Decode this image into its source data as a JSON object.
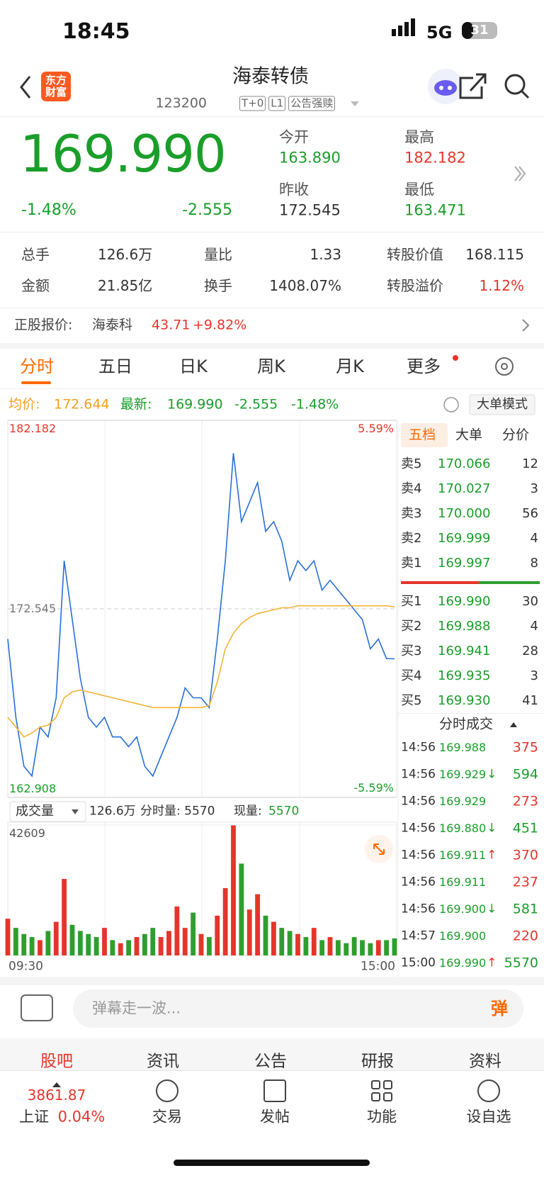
{
  "status_bar": {
    "time": "18:45",
    "network": "5G",
    "battery": "31"
  },
  "header": {
    "logo": "东方财富",
    "title": "海泰转债",
    "code": "123200",
    "tags": [
      "T+0",
      "L1",
      "公告强赎"
    ]
  },
  "quote": {
    "price": "169.990",
    "change_pct": "-1.48%",
    "change": "-2.555",
    "fields": [
      {
        "label": "今开",
        "value": "163.890",
        "color": "#1a9e2a"
      },
      {
        "label": "最高",
        "value": "182.182",
        "color": "#e5352b"
      },
      {
        "label": "昨收",
        "value": "172.545",
        "color": "#333333"
      },
      {
        "label": "最低",
        "value": "163.471",
        "color": "#1a9e2a"
      }
    ]
  },
  "stats": [
    [
      {
        "label": "总手",
        "value": "126.6万"
      },
      {
        "label": "量比",
        "value": "1.33"
      },
      {
        "label": "转股价值",
        "value": "168.115"
      }
    ],
    [
      {
        "label": "金额",
        "value": "21.85亿"
      },
      {
        "label": "换手",
        "value": "1408.07%"
      },
      {
        "label": "转股溢价",
        "value": "1.12%",
        "color": "#e5352b"
      }
    ]
  ],
  "underlying": {
    "label": "正股报价:",
    "name": "海泰科",
    "price": "43.71",
    "change": "+9.82%"
  },
  "tabs": [
    "分时",
    "五日",
    "日K",
    "周K",
    "月K",
    "更多"
  ],
  "info_bar": {
    "avg_label": "均价:",
    "avg": "172.644",
    "latest_label": "最新:",
    "latest": "169.990",
    "change": "-2.555",
    "change_pct": "-1.48%",
    "mode": "大单模式"
  },
  "chart_data": [
    {
      "type": "line",
      "categories": [
        "09:30",
        null,
        null,
        null,
        null,
        null,
        null,
        null,
        null,
        null,
        null,
        null,
        null,
        null,
        null,
        null,
        null,
        null,
        null,
        null,
        null,
        null,
        null,
        null,
        null,
        null,
        null,
        null,
        null,
        null,
        null,
        null,
        null,
        null,
        null,
        null,
        null,
        null,
        null,
        null,
        null,
        null,
        null,
        null,
        null,
        null,
        null,
        null,
        "15:00"
      ],
      "series": [
        {
          "name": "最新",
          "color": "#2a6fd6",
          "values": [
            171,
            167,
            164.5,
            164,
            166.5,
            166,
            168,
            175,
            172,
            169,
            167,
            166.5,
            167,
            166,
            166,
            165.5,
            166,
            164.5,
            164,
            165,
            166,
            167,
            168.5,
            168,
            168,
            167.5,
            171,
            175,
            180.5,
            177,
            178,
            179,
            176.5,
            177,
            176,
            174,
            175,
            174.5,
            175,
            173.5,
            174,
            173.5,
            173,
            172.5,
            172,
            170.5,
            171,
            170,
            169.99
          ]
        },
        {
          "name": "均价",
          "color": "#f5b335",
          "values": [
            167,
            166.5,
            166,
            166.2,
            166.5,
            166.6,
            167,
            168,
            168.3,
            168.4,
            168.3,
            168.2,
            168.1,
            168,
            167.9,
            167.8,
            167.7,
            167.6,
            167.5,
            167.5,
            167.5,
            167.5,
            167.5,
            167.5,
            167.5,
            167.6,
            168.8,
            170.5,
            171.3,
            171.8,
            172.1,
            172.3,
            172.4,
            172.5,
            172.6,
            172.6,
            172.7,
            172.7,
            172.7,
            172.7,
            172.7,
            172.7,
            172.7,
            172.7,
            172.7,
            172.7,
            172.7,
            172.7,
            172.644
          ]
        }
      ],
      "ylim": [
        162.908,
        182.182
      ],
      "yticks": [
        {
          "value": 162.908,
          "label": "162.908"
        },
        {
          "value": 172.545,
          "label": "172.545"
        },
        {
          "value": 182.182,
          "label": "182.182"
        }
      ],
      "pct_labels": [
        "5.59%",
        "-5.59%"
      ],
      "grid": true
    },
    {
      "type": "bar",
      "title": "成交量",
      "total": "126.6万",
      "minute_label": "分时量: 5570",
      "current_label": "现量:",
      "current": "5570",
      "up_color": "#e5352b",
      "down_color": "#2e9e2e",
      "values": [
        12000,
        9000,
        7000,
        6000,
        5000,
        8000,
        11000,
        25000,
        10000,
        8000,
        7000,
        6000,
        9000,
        5000,
        4000,
        5000,
        6000,
        7000,
        9000,
        6000,
        8000,
        16000,
        9000,
        14000,
        7000,
        6000,
        13000,
        22000,
        42609,
        30000,
        15000,
        20000,
        13000,
        11000,
        9000,
        8000,
        7000,
        6000,
        9000,
        5000,
        6000,
        5000,
        4000,
        6000,
        5000,
        4000,
        5000,
        5000,
        5570
      ],
      "ylim": [
        0,
        42609
      ],
      "yticks": [
        42609
      ]
    }
  ],
  "book_tabs": [
    "五档",
    "大单",
    "分价"
  ],
  "asks": [
    [
      "卖5",
      "170.066",
      "12"
    ],
    [
      "卖4",
      "170.027",
      "3"
    ],
    [
      "卖3",
      "170.000",
      "56"
    ],
    [
      "卖2",
      "169.999",
      "4"
    ],
    [
      "卖1",
      "169.997",
      "8"
    ]
  ],
  "bids": [
    [
      "买1",
      "169.990",
      "30"
    ],
    [
      "买2",
      "169.988",
      "4"
    ],
    [
      "买3",
      "169.941",
      "28"
    ],
    [
      "买4",
      "169.935",
      "3"
    ],
    [
      "买5",
      "169.930",
      "41"
    ]
  ],
  "trades_title": "分时成交",
  "trades": [
    {
      "time": "14:56",
      "price": "169.988",
      "volume": "375",
      "color": "#e5352b"
    },
    {
      "time": "14:56",
      "price": "169.929",
      "dir": "↓",
      "volume": "594",
      "color": "#1a9e2a"
    },
    {
      "time": "14:56",
      "price": "169.929",
      "volume": "273",
      "color": "#e5352b"
    },
    {
      "time": "14:56",
      "price": "169.880",
      "dir": "↓",
      "volume": "451",
      "color": "#1a9e2a"
    },
    {
      "time": "14:56",
      "price": "169.911",
      "dir": "↑",
      "volume": "370",
      "color": "#e5352b"
    },
    {
      "time": "14:56",
      "price": "169.911",
      "volume": "237",
      "color": "#e5352b"
    },
    {
      "time": "14:56",
      "price": "169.900",
      "dir": "↓",
      "volume": "581",
      "color": "#1a9e2a"
    },
    {
      "time": "14:57",
      "price": "169.900",
      "volume": "220",
      "color": "#e5352b"
    },
    {
      "time": "15:00",
      "price": "169.990",
      "dir": "↑",
      "volume": "5570",
      "color": "#1a9e2a"
    }
  ],
  "comment": {
    "placeholder": "弹幕走一波...",
    "button": "弹"
  },
  "sub_tabs": [
    "股吧",
    "资讯",
    "公告",
    "研报",
    "资料"
  ],
  "bottom_nav": {
    "index_value": "3861.87",
    "index_name": "上证",
    "index_change": "0.04%",
    "items": [
      "交易",
      "发帖",
      "功能",
      "设自选"
    ]
  }
}
